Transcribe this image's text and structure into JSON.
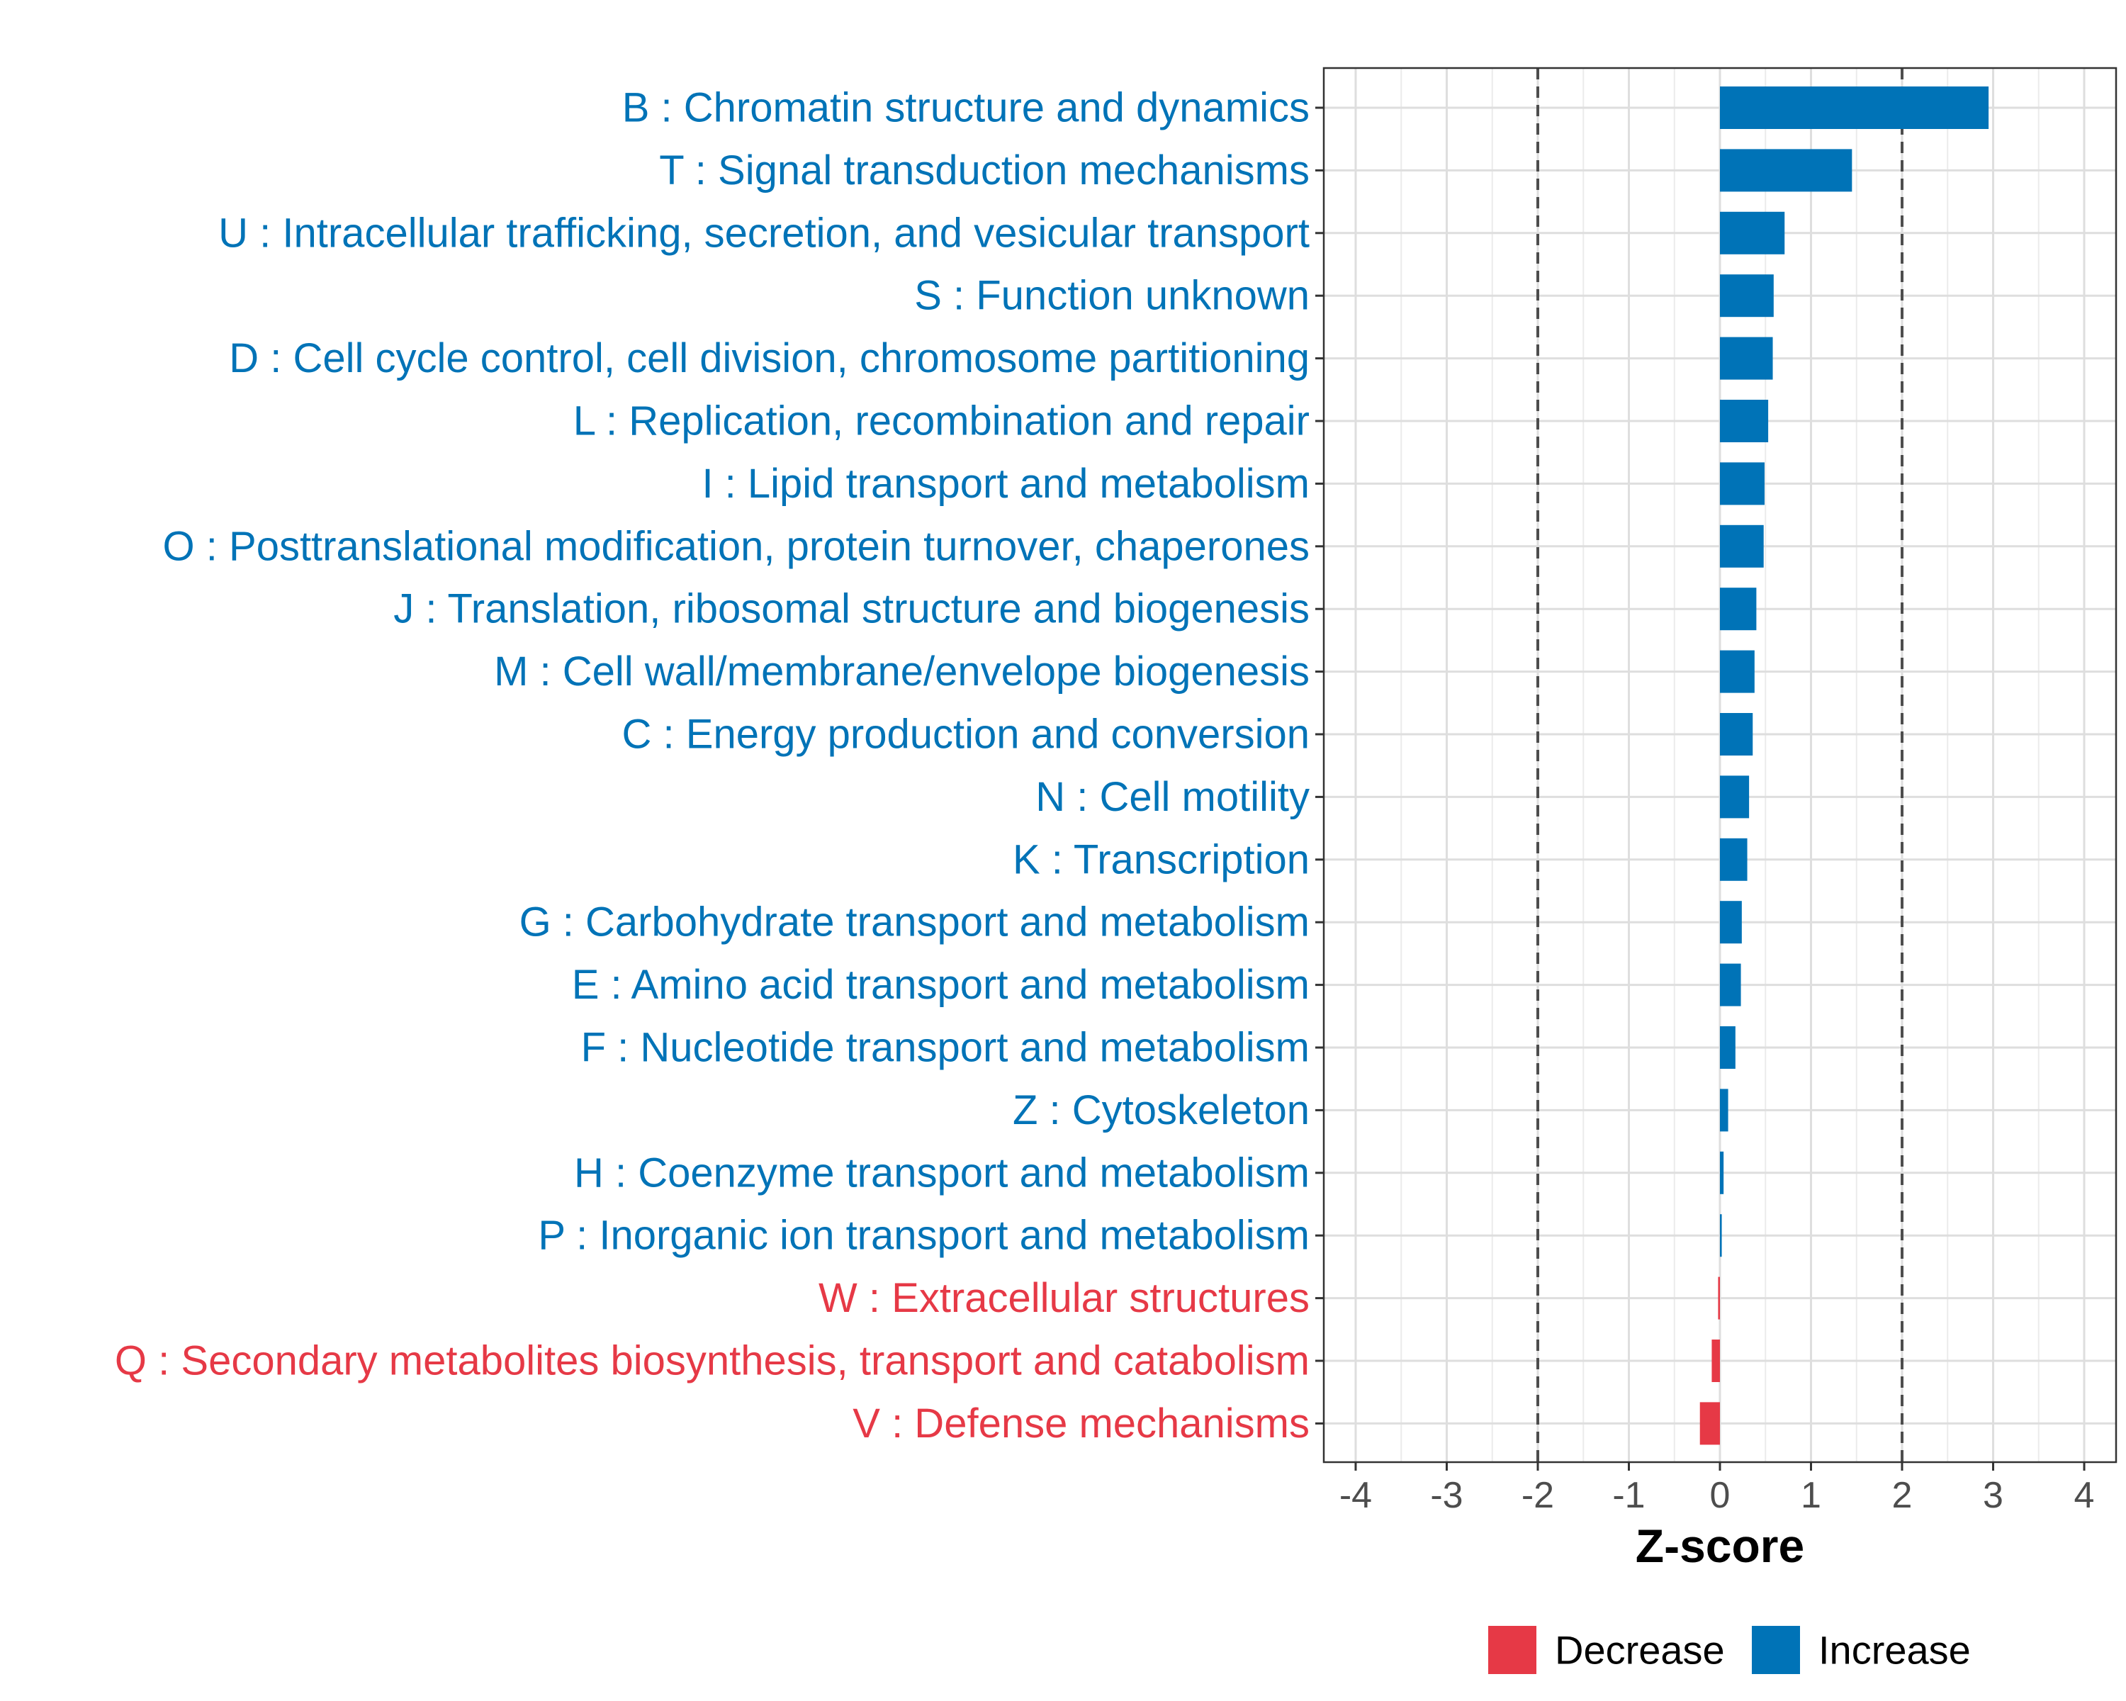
{
  "chart_data": {
    "type": "bar",
    "orientation": "horizontal",
    "title": "",
    "xlabel": "Z-score",
    "ylabel": "",
    "xlim": [
      -4.35,
      4.35
    ],
    "xticks": [
      -4,
      -3,
      -2,
      -1,
      0,
      1,
      2,
      3,
      4
    ],
    "xtick_labels": [
      "-4",
      "-3",
      "-2",
      "-1",
      "0",
      "1",
      "2",
      "3",
      "4"
    ],
    "reference_lines": [
      -2,
      2
    ],
    "grid": true,
    "colors": {
      "Increase": "#0073b7",
      "Decrease": "#e63946"
    },
    "categories": [
      "B : Chromatin structure and dynamics",
      "T : Signal transduction mechanisms",
      "U : Intracellular trafficking, secretion, and vesicular transport",
      "S : Function unknown",
      "D : Cell cycle control, cell division, chromosome partitioning",
      "L : Replication, recombination and repair",
      "I : Lipid transport and metabolism",
      "O : Posttranslational modification, protein turnover, chaperones",
      "J : Translation, ribosomal structure and biogenesis",
      "M : Cell wall/membrane/envelope biogenesis",
      "C : Energy production and conversion",
      "N : Cell motility",
      "K : Transcription",
      "G : Carbohydrate transport and metabolism",
      "E : Amino acid transport and metabolism",
      "F : Nucleotide transport and metabolism",
      "Z : Cytoskeleton",
      "H : Coenzyme transport and metabolism",
      "P : Inorganic ion transport and metabolism",
      "W : Extracellular structures",
      "Q : Secondary metabolites biosynthesis, transport and catabolism",
      "V : Defense mechanisms"
    ],
    "values": [
      2.95,
      1.45,
      0.71,
      0.59,
      0.58,
      0.53,
      0.49,
      0.48,
      0.4,
      0.38,
      0.36,
      0.32,
      0.3,
      0.24,
      0.23,
      0.17,
      0.09,
      0.04,
      0.02,
      -0.02,
      -0.09,
      -0.22
    ],
    "groups": [
      "Increase",
      "Increase",
      "Increase",
      "Increase",
      "Increase",
      "Increase",
      "Increase",
      "Increase",
      "Increase",
      "Increase",
      "Increase",
      "Increase",
      "Increase",
      "Increase",
      "Increase",
      "Increase",
      "Increase",
      "Increase",
      "Increase",
      "Decrease",
      "Decrease",
      "Decrease"
    ],
    "legend": {
      "position": "bottom",
      "entries": [
        "Decrease",
        "Increase"
      ]
    }
  }
}
